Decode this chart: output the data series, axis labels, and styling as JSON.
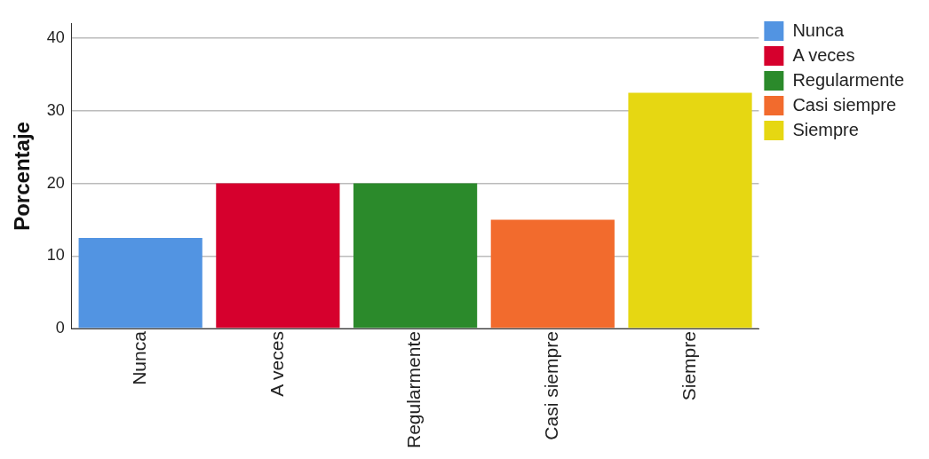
{
  "chart_data": {
    "type": "bar",
    "ylabel": "Porcentaje",
    "categories": [
      "Nunca",
      "A veces",
      "Regularmente",
      "Casi siempre",
      "Siempre"
    ],
    "series": [
      {
        "name": "Nunca",
        "color": "#5294e2",
        "values": [
          12.5,
          null,
          null,
          null,
          null
        ]
      },
      {
        "name": "A veces",
        "color": "#d6002d",
        "values": [
          null,
          20,
          null,
          null,
          null
        ]
      },
      {
        "name": "Regularmente",
        "color": "#2b8a2b",
        "values": [
          null,
          null,
          20,
          null,
          null
        ]
      },
      {
        "name": "Casi siempre",
        "color": "#f26b2d",
        "values": [
          null,
          null,
          null,
          15,
          null
        ]
      },
      {
        "name": "Siempre",
        "color": "#e6d712",
        "values": [
          null,
          null,
          null,
          null,
          32.5
        ]
      }
    ],
    "ylim": [
      0,
      42
    ],
    "yticks": [
      0,
      10,
      20,
      30,
      40
    ],
    "grid": "y",
    "legend": "right"
  }
}
